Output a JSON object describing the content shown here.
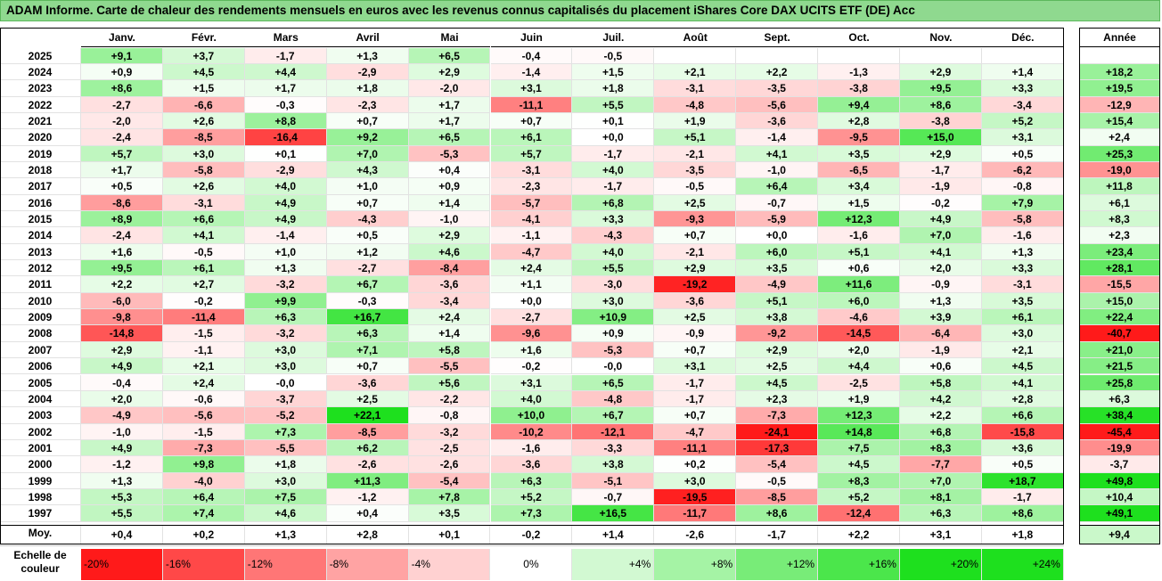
{
  "title": "ADAM Informe. Carte de chaleur des rendements mensuels en euros avec les revenus connus capitalisés du placement iShares Core DAX UCITS ETF (DE) Acc",
  "chart_data": {
    "type": "heatmap",
    "months": [
      "Janv.",
      "Févr.",
      "Mars",
      "Avril",
      "Mai",
      "Juin",
      "Juil.",
      "Août",
      "Sept.",
      "Oct.",
      "Nov.",
      "Déc."
    ],
    "year_header": "Année",
    "rows": [
      {
        "year": "2025",
        "months": [
          "+9,1",
          "+3,7",
          "-1,7",
          "+1,3",
          "+6,5",
          "-0,4",
          "-0,5",
          "",
          "",
          "",
          "",
          ""
        ],
        "annual": ""
      },
      {
        "year": "2024",
        "months": [
          "+0,9",
          "+4,5",
          "+4,4",
          "-2,9",
          "+2,9",
          "-1,4",
          "+1,5",
          "+2,1",
          "+2,2",
          "-1,3",
          "+2,9",
          "+1,4"
        ],
        "annual": "+18,2"
      },
      {
        "year": "2023",
        "months": [
          "+8,6",
          "+1,5",
          "+1,7",
          "+1,8",
          "-2,0",
          "+3,1",
          "+1,8",
          "-3,1",
          "-3,5",
          "-3,8",
          "+9,5",
          "+3,3"
        ],
        "annual": "+19,5"
      },
      {
        "year": "2022",
        "months": [
          "-2,7",
          "-6,6",
          "-0,3",
          "-2,3",
          "+1,7",
          "-11,1",
          "+5,5",
          "-4,8",
          "-5,6",
          "+9,4",
          "+8,6",
          "-3,4"
        ],
        "annual": "-12,9"
      },
      {
        "year": "2021",
        "months": [
          "-2,0",
          "+2,6",
          "+8,8",
          "+0,7",
          "+1,7",
          "+0,7",
          "+0,1",
          "+1,9",
          "-3,6",
          "+2,8",
          "-3,8",
          "+5,2"
        ],
        "annual": "+15,4"
      },
      {
        "year": "2020",
        "months": [
          "-2,4",
          "-8,5",
          "-16,4",
          "+9,2",
          "+6,5",
          "+6,1",
          "+0,0",
          "+5,1",
          "-1,4",
          "-9,5",
          "+15,0",
          "+3,1"
        ],
        "annual": "+2,4"
      },
      {
        "year": "2019",
        "months": [
          "+5,7",
          "+3,0",
          "+0,1",
          "+7,0",
          "-5,3",
          "+5,7",
          "-1,7",
          "-2,1",
          "+4,1",
          "+3,5",
          "+2,9",
          "+0,5"
        ],
        "annual": "+25,3"
      },
      {
        "year": "2018",
        "months": [
          "+1,7",
          "-5,8",
          "-2,9",
          "+4,3",
          "+0,4",
          "-3,1",
          "+4,0",
          "-3,5",
          "-1,0",
          "-6,5",
          "-1,7",
          "-6,2"
        ],
        "annual": "-19,0"
      },
      {
        "year": "2017",
        "months": [
          "+0,5",
          "+2,6",
          "+4,0",
          "+1,0",
          "+0,9",
          "-2,3",
          "-1,7",
          "-0,5",
          "+6,4",
          "+3,4",
          "-1,9",
          "-0,8"
        ],
        "annual": "+11,8"
      },
      {
        "year": "2016",
        "months": [
          "-8,6",
          "-3,1",
          "+4,9",
          "+0,7",
          "+1,4",
          "-5,7",
          "+6,8",
          "+2,5",
          "-0,7",
          "+1,5",
          "-0,2",
          "+7,9"
        ],
        "annual": "+6,1"
      },
      {
        "year": "2015",
        "months": [
          "+8,9",
          "+6,6",
          "+4,9",
          "-4,3",
          "-1,0",
          "-4,1",
          "+3,3",
          "-9,3",
          "-5,9",
          "+12,3",
          "+4,9",
          "-5,8"
        ],
        "annual": "+8,3"
      },
      {
        "year": "2014",
        "months": [
          "-2,4",
          "+4,1",
          "-1,4",
          "+0,5",
          "+2,9",
          "-1,1",
          "-4,3",
          "+0,7",
          "+0,0",
          "-1,6",
          "+7,0",
          "-1,6"
        ],
        "annual": "+2,3"
      },
      {
        "year": "2013",
        "months": [
          "+1,6",
          "-0,5",
          "+1,0",
          "+1,2",
          "+4,6",
          "-4,7",
          "+4,0",
          "-2,1",
          "+6,0",
          "+5,1",
          "+4,1",
          "+1,3"
        ],
        "annual": "+23,4"
      },
      {
        "year": "2012",
        "months": [
          "+9,5",
          "+6,1",
          "+1,3",
          "-2,7",
          "-8,4",
          "+2,4",
          "+5,5",
          "+2,9",
          "+3,5",
          "+0,6",
          "+2,0",
          "+3,3"
        ],
        "annual": "+28,1"
      },
      {
        "year": "2011",
        "months": [
          "+2,2",
          "+2,7",
          "-3,2",
          "+6,7",
          "-3,6",
          "+1,1",
          "-3,0",
          "-19,2",
          "-4,9",
          "+11,6",
          "-0,9",
          "-3,1"
        ],
        "annual": "-15,5"
      },
      {
        "year": "2010",
        "months": [
          "-6,0",
          "-0,2",
          "+9,9",
          "-0,3",
          "-3,4",
          "+0,0",
          "+3,0",
          "-3,6",
          "+5,1",
          "+6,0",
          "+1,3",
          "+3,5"
        ],
        "annual": "+15,0"
      },
      {
        "year": "2009",
        "months": [
          "-9,8",
          "-11,4",
          "+6,3",
          "+16,7",
          "+2,4",
          "-2,7",
          "+10,9",
          "+2,5",
          "+3,8",
          "-4,6",
          "+3,9",
          "+6,1"
        ],
        "annual": "+22,4"
      },
      {
        "year": "2008",
        "months": [
          "-14,8",
          "-1,5",
          "-3,2",
          "+6,3",
          "+1,4",
          "-9,6",
          "+0,9",
          "-0,9",
          "-9,2",
          "-14,5",
          "-6,4",
          "+3,0"
        ],
        "annual": "-40,7"
      },
      {
        "year": "2007",
        "months": [
          "+2,9",
          "-1,1",
          "+3,0",
          "+7,1",
          "+5,8",
          "+1,6",
          "-5,3",
          "+0,7",
          "+2,9",
          "+2,0",
          "-1,9",
          "+2,1"
        ],
        "annual": "+21,0"
      },
      {
        "year": "2006",
        "months": [
          "+4,9",
          "+2,1",
          "+3,0",
          "+0,7",
          "-5,5",
          "-0,2",
          "-0,0",
          "+3,1",
          "+2,5",
          "+4,4",
          "+0,6",
          "+4,5"
        ],
        "annual": "+21,5"
      },
      {
        "year": "2005",
        "months": [
          "-0,4",
          "+2,4",
          "-0,0",
          "-3,6",
          "+5,6",
          "+3,1",
          "+6,5",
          "-1,7",
          "+4,5",
          "-2,5",
          "+5,8",
          "+4,1"
        ],
        "annual": "+25,8"
      },
      {
        "year": "2004",
        "months": [
          "+2,0",
          "-0,6",
          "-3,7",
          "+2,5",
          "-2,2",
          "+4,0",
          "-4,8",
          "-1,7",
          "+2,3",
          "+1,9",
          "+4,2",
          "+2,8"
        ],
        "annual": "+6,3"
      },
      {
        "year": "2003",
        "months": [
          "-4,9",
          "-5,6",
          "-5,2",
          "+22,1",
          "-0,8",
          "+10,0",
          "+6,7",
          "+0,7",
          "-7,3",
          "+12,3",
          "+2,2",
          "+6,6"
        ],
        "annual": "+38,4"
      },
      {
        "year": "2002",
        "months": [
          "-1,0",
          "-1,5",
          "+7,3",
          "-8,5",
          "-3,2",
          "-10,2",
          "-12,1",
          "-4,7",
          "-24,1",
          "+14,8",
          "+6,8",
          "-15,8"
        ],
        "annual": "-45,4"
      },
      {
        "year": "2001",
        "months": [
          "+4,9",
          "-7,3",
          "-5,5",
          "+6,2",
          "-2,5",
          "-1,6",
          "-3,3",
          "-11,1",
          "-17,3",
          "+7,5",
          "+8,3",
          "+3,6"
        ],
        "annual": "-19,9"
      },
      {
        "year": "2000",
        "months": [
          "-1,2",
          "+9,8",
          "+1,8",
          "-2,6",
          "-2,6",
          "-3,6",
          "+3,8",
          "+0,2",
          "-5,4",
          "+4,5",
          "-7,7",
          "+0,5"
        ],
        "annual": "-3,7"
      },
      {
        "year": "1999",
        "months": [
          "+1,3",
          "-4,0",
          "+3,0",
          "+11,3",
          "-5,4",
          "+6,3",
          "-5,1",
          "+3,0",
          "-0,5",
          "+8,3",
          "+7,0",
          "+18,7"
        ],
        "annual": "+49,8"
      },
      {
        "year": "1998",
        "months": [
          "+5,3",
          "+6,4",
          "+7,5",
          "-1,2",
          "+7,8",
          "+5,2",
          "-0,7",
          "-19,5",
          "-8,5",
          "+5,2",
          "+8,1",
          "-1,7"
        ],
        "annual": "+10,4"
      },
      {
        "year": "1997",
        "months": [
          "+5,5",
          "+7,4",
          "+4,6",
          "+0,4",
          "+3,5",
          "+7,3",
          "+16,5",
          "-11,7",
          "+8,6",
          "-12,4",
          "+6,3",
          "+8,6"
        ],
        "annual": "+49,1"
      }
    ],
    "average": {
      "label": "Moy.",
      "months": [
        "+0,4",
        "+0,2",
        "+1,3",
        "+2,8",
        "+0,1",
        "-0,2",
        "+1,4",
        "-2,6",
        "-1,7",
        "+2,2",
        "+3,1",
        "+1,8"
      ],
      "annual": "+9,4"
    },
    "scale": {
      "label_line1": "Echelle de",
      "label_line2": "couleur",
      "entries": [
        "-20%",
        "-16%",
        "-12%",
        "-8%",
        "-4%",
        "0%",
        "+4%",
        "+8%",
        "+12%",
        "+16%",
        "+20%",
        "+24%"
      ]
    },
    "colors": {
      "negative_max": "#ff1a1a",
      "neutral": "#ffffff",
      "positive_max": "#1ee01e",
      "title_bg": "#8fd98f"
    }
  }
}
